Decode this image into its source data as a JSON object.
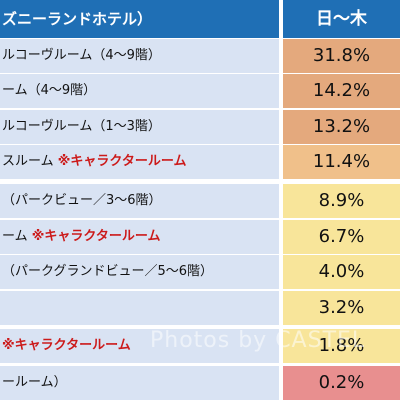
{
  "header": {
    "left": "ズニーランドホテル）",
    "right": "日〜木"
  },
  "rows": [
    {
      "text": "ルコーヴルーム（4〜9階）",
      "note": "",
      "value": "31.8%",
      "color": "#e4a97d"
    },
    {
      "text": "ーム（4〜9階）",
      "note": "",
      "value": "14.2%",
      "color": "#e4a97d"
    },
    {
      "text": "ルコーヴルーム（1〜3階）",
      "note": "",
      "value": "13.2%",
      "color": "#e4a97d"
    },
    {
      "text": "スルーム ",
      "note": "※キャラクタールーム",
      "value": "11.4%",
      "color": "#f0c08a"
    },
    {
      "text": "（パークビュー／3〜6階）",
      "note": "",
      "value": "8.9%",
      "color": "#f8e59a"
    },
    {
      "text": "ーム ",
      "note": "※キャラクタールーム",
      "value": "6.7%",
      "color": "#f8e59a"
    },
    {
      "text": "（パークグランドビュー／5〜6階）",
      "note": "",
      "value": "4.0%",
      "color": "#f8e59a"
    },
    {
      "text": "",
      "note": "",
      "value": "3.2%",
      "color": "#f8e59a"
    },
    {
      "text": "",
      "note": "※キャラクタールーム",
      "value": "1.8%",
      "color": "#f8e59a"
    },
    {
      "text": "ールーム）",
      "note": "",
      "value": "0.2%",
      "color": "#e88f8f"
    }
  ],
  "watermark": "Photos by CASTEL"
}
